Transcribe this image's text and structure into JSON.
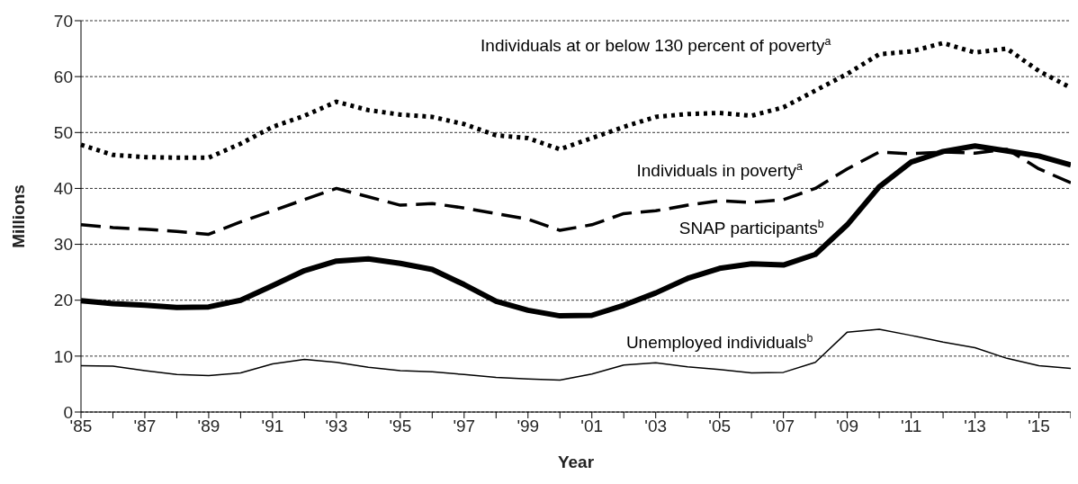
{
  "chart_data": {
    "type": "line",
    "xlabel": "Year",
    "ylabel": "Millions",
    "categories": [
      "'85",
      null,
      "'87",
      null,
      "'89",
      null,
      "'91",
      null,
      "'93",
      null,
      "'95",
      null,
      "'97",
      null,
      "'99",
      null,
      "'01",
      null,
      "'03",
      null,
      "'05",
      null,
      "'07",
      null,
      "'09",
      null,
      "'11",
      null,
      "'13",
      null,
      "'15",
      null
    ],
    "series": [
      {
        "name": "Individuals at or below 130 percent of poverty$^{a}$",
        "color": "#000000",
        "line_style": "dotted",
        "values": [
          47.8,
          46,
          45.6,
          45.5,
          45.5,
          48,
          51,
          53,
          55.5,
          54,
          53.2,
          52.8,
          51.5,
          49.5,
          49,
          47,
          49,
          51,
          52.8,
          53.3,
          53.5,
          53,
          54.5,
          57.5,
          60.5,
          64,
          64.5,
          66,
          64.3,
          65,
          61,
          58
        ]
      },
      {
        "name": "Individuals in poverty$^{a}$",
        "color": "#000000",
        "line_style": "dashed",
        "values": [
          33.5,
          33,
          32.7,
          32.3,
          31.8,
          34,
          36,
          38,
          40,
          38.5,
          37,
          37.3,
          36.5,
          35.5,
          34.5,
          32.5,
          33.5,
          35.5,
          36,
          37,
          37.8,
          37.5,
          38,
          40,
          43.5,
          46.5,
          46.2,
          46.5,
          46.3,
          47,
          43.5,
          41
        ]
      },
      {
        "name": "SNAP participants$^{b}$",
        "color": "#000000",
        "line_style": "solid",
        "values": [
          19.9,
          19.4,
          19.1,
          18.7,
          18.8,
          20,
          22.6,
          25.3,
          27,
          27.4,
          26.6,
          25.5,
          22.8,
          19.8,
          18.2,
          17.2,
          17.3,
          19.1,
          21.3,
          23.9,
          25.7,
          26.5,
          26.3,
          28.2,
          33.5,
          40.3,
          44.7,
          46.6,
          47.6,
          46.7,
          45.8,
          44.2
        ]
      },
      {
        "name": "Unemployed individuals$^{b}$",
        "color": "#000000",
        "line_style": "solid",
        "values": [
          8.3,
          8.2,
          7.4,
          6.7,
          6.5,
          7,
          8.6,
          9.4,
          8.9,
          8,
          7.4,
          7.2,
          6.7,
          6.2,
          5.9,
          5.7,
          6.8,
          8.4,
          8.8,
          8.1,
          7.6,
          7,
          7.1,
          8.9,
          14.3,
          14.8,
          13.7,
          12.5,
          11.5,
          9.6,
          8.3,
          7.8
        ]
      }
    ],
    "ylim": [
      0,
      70
    ],
    "yticks": [
      0,
      10,
      20,
      30,
      40,
      50,
      60,
      70
    ],
    "grid": "y",
    "legend": false,
    "marker": "none"
  }
}
